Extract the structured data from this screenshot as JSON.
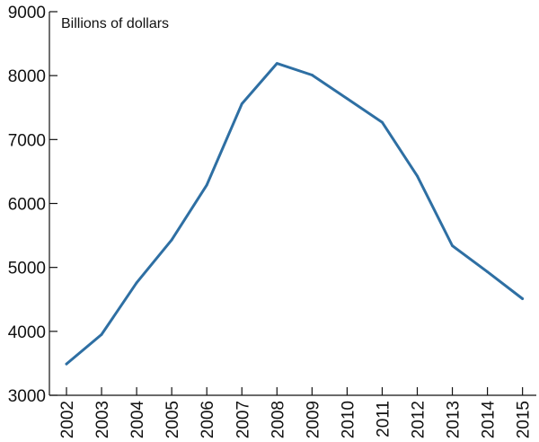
{
  "chart_data": {
    "type": "line",
    "ylabel": "Billions of dollars",
    "categories": [
      "2002",
      "2003",
      "2004",
      "2005",
      "2006",
      "2007",
      "2008",
      "2009",
      "2010",
      "2011",
      "2012",
      "2013",
      "2014",
      "2015"
    ],
    "series": [
      {
        "values": [
          3490,
          3950,
          4760,
          5430,
          6290,
          7560,
          8190,
          8010,
          7640,
          7270,
          6430,
          5340,
          4930,
          4510
        ]
      }
    ],
    "ylim": [
      3000,
      9000
    ],
    "yticks": [
      "3000",
      "4000",
      "5000",
      "6000",
      "7000",
      "8000",
      "9000"
    ],
    "grid": false,
    "line_color": "#2e6fa3"
  }
}
